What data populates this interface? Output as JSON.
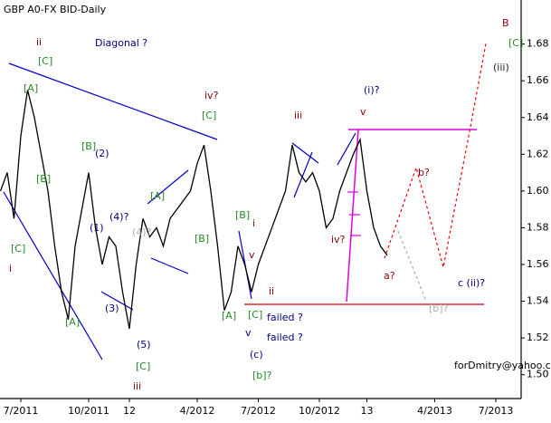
{
  "chart_data": {
    "type": "line",
    "title": "GBP A0-FX BID-Daily",
    "categories": [
      null,
      null,
      null,
      "7/2011",
      null,
      null,
      null,
      null,
      null,
      null,
      null,
      null,
      null,
      "10/2011",
      null,
      null,
      null,
      null,
      null,
      "12",
      null,
      null,
      null,
      null,
      null,
      null,
      null,
      null,
      null,
      "4/2012",
      null,
      null,
      null,
      null,
      null,
      null,
      null,
      null,
      "7/2012",
      null,
      null,
      null,
      null,
      null,
      null,
      null,
      null,
      "10/2012",
      null,
      null,
      null,
      null,
      null,
      null,
      "13",
      null,
      null,
      null,
      null,
      null,
      null,
      null,
      null,
      null,
      "4/2013",
      null,
      null,
      null,
      null,
      null,
      null,
      null,
      null,
      "7/2013",
      null,
      null,
      null
    ],
    "series": [
      {
        "name": "GBP A0-FX BID",
        "color": "#000000",
        "values": [
          1.6,
          1.61,
          1.585,
          1.63,
          1.655,
          1.64,
          1.62,
          1.6,
          1.57,
          1.545,
          1.53,
          1.57,
          1.59,
          1.61,
          1.58,
          1.56,
          1.575,
          1.57,
          1.545,
          1.525,
          1.56,
          1.585,
          1.575,
          1.58,
          1.57,
          1.585,
          1.59,
          1.595,
          1.6,
          1.615,
          1.625,
          1.6,
          1.57,
          1.535,
          1.545,
          1.57,
          1.56,
          1.545,
          1.56,
          1.57,
          1.58,
          1.59,
          1.6,
          1.625,
          1.61,
          1.605,
          1.61,
          1.6,
          1.58,
          1.585,
          1.6,
          1.61,
          1.62,
          1.628,
          1.6,
          1.58,
          1.57,
          1.565,
          null,
          null,
          null,
          null,
          null,
          null,
          null,
          null,
          null,
          null,
          null,
          null,
          null,
          null,
          null,
          null,
          null,
          null,
          null
        ]
      }
    ],
    "ylim": [
      1.487,
      1.703
    ],
    "yticks": [
      {
        "value": 1.5,
        "label": "1.50"
      },
      1.52,
      1.54,
      1.56,
      1.58,
      {
        "value": 1.6,
        "label": "1.60"
      },
      1.62,
      1.64,
      1.66,
      1.68
    ],
    "annotations": [
      {
        "text": "B",
        "color": "#8b0000"
      },
      {
        "text": "[C]",
        "color": "#228b22"
      },
      {
        "text": "(iii)",
        "color": "#222"
      },
      {
        "text": "ii",
        "color": "#8b0000"
      },
      {
        "text": "Diagonal ?",
        "color": "#000080"
      },
      {
        "text": "[C]",
        "color": "#228b22"
      },
      {
        "text": "[A]",
        "color": "#228b22"
      },
      {
        "text": "[B]",
        "color": "#228b22"
      },
      {
        "text": "[C]",
        "color": "#228b22"
      },
      {
        "text": "i",
        "color": "#8b0000"
      },
      {
        "text": "[A]",
        "color": "#228b22"
      },
      {
        "text": "[B]",
        "color": "#228b22"
      },
      {
        "text": "(2)",
        "color": "#000080"
      },
      {
        "text": "(1)",
        "color": "#000080"
      },
      {
        "text": "(4)?",
        "color": "#000080"
      },
      {
        "text": "(4)?",
        "color": "#aaaaaa"
      },
      {
        "text": "(3)",
        "color": "#000080"
      },
      {
        "text": "(5)",
        "color": "#000080"
      },
      {
        "text": "[C]",
        "color": "#228b22"
      },
      {
        "text": "iii",
        "color": "#8b0000"
      },
      {
        "text": "[A]",
        "color": "#228b22"
      },
      {
        "text": "[B]",
        "color": "#228b22"
      },
      {
        "text": "iv?",
        "color": "#8b0000"
      },
      {
        "text": "[C]",
        "color": "#228b22"
      },
      {
        "text": "[A]",
        "color": "#228b22"
      },
      {
        "text": "[B]",
        "color": "#228b22"
      },
      {
        "text": "i",
        "color": "#8b0000"
      },
      {
        "text": "v",
        "color": "#8b0000"
      },
      {
        "text": "ii",
        "color": "#8b0000"
      },
      {
        "text": "[C]",
        "color": "#228b22"
      },
      {
        "text": "failed ?",
        "color": "#000080"
      },
      {
        "text": "failed ?",
        "color": "#000080"
      },
      {
        "text": "(c)",
        "color": "#000080"
      },
      {
        "text": "v",
        "color": "#000080"
      },
      {
        "text": "[b]?",
        "color": "#228b22"
      },
      {
        "text": "iii",
        "color": "#8b0000"
      },
      {
        "text": "(i)?",
        "color": "#000080"
      },
      {
        "text": "v",
        "color": "#8b0000"
      },
      {
        "text": "iv?",
        "color": "#8b0000"
      },
      {
        "text": "a?",
        "color": "#8b0000"
      },
      {
        "text": "b?",
        "color": "#8b0000"
      },
      {
        "text": "c (ii)?",
        "color": "#000080"
      },
      {
        "text": "[b]?",
        "color": "#aaaaaa"
      },
      {
        "text": "forDmitry@yahoo.com",
        "color": "#000"
      }
    ]
  }
}
